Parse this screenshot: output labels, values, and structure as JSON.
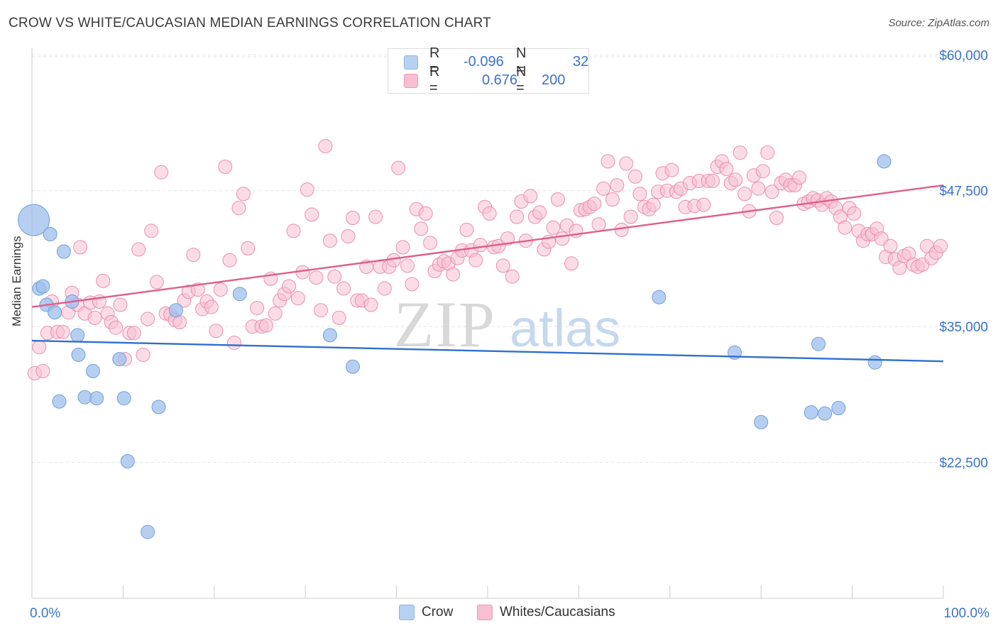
{
  "title": "CROW VS WHITE/CAUCASIAN MEDIAN EARNINGS CORRELATION CHART",
  "source": "Source: ZipAtlas.com",
  "watermark": {
    "zip": "ZIP",
    "atlas": "atlas"
  },
  "legend": {
    "r_label": "R =",
    "n_label": "N =",
    "rows": [
      {
        "swatch": "#b7d1f2",
        "r": "-0.096",
        "n": "32"
      },
      {
        "swatch": "#f7bfd1",
        "r": "0.676",
        "n": "200"
      }
    ]
  },
  "bottom_legend": [
    {
      "label": "Crow",
      "color": "#b7d1f2"
    },
    {
      "label": "Whites/Caucasians",
      "color": "#f7bfd1"
    }
  ],
  "chart_data": {
    "type": "scatter",
    "title": "CROW VS WHITE/CAUCASIAN MEDIAN EARNINGS CORRELATION CHART",
    "xlabel": "",
    "ylabel": "Median Earnings",
    "x_ticks": [
      "0.0%",
      "100.0%"
    ],
    "y_ticks": [
      {
        "value": 22500,
        "label": "$22,500"
      },
      {
        "value": 35000,
        "label": "$35,000"
      },
      {
        "value": 47500,
        "label": "$47,500"
      },
      {
        "value": 60000,
        "label": "$60,000"
      }
    ],
    "xlim": [
      0,
      100
    ],
    "ylim": [
      10000,
      61000
    ],
    "grid": true,
    "series": [
      {
        "name": "Crow",
        "color": "#9dbfec",
        "stroke": "#6f9fdc",
        "line_color": "#2f6fcc",
        "trend": {
          "x": [
            0,
            100
          ],
          "y": [
            33700,
            31800
          ]
        },
        "points": [
          [
            0.2,
            44800,
            5
          ],
          [
            0.8,
            38500,
            1
          ],
          [
            1.2,
            38700,
            1
          ],
          [
            1.6,
            37000,
            1
          ],
          [
            2.0,
            43500,
            1
          ],
          [
            2.5,
            36300,
            1
          ],
          [
            3.0,
            28100,
            1
          ],
          [
            3.5,
            41900,
            1
          ],
          [
            4.4,
            37300,
            1
          ],
          [
            5.0,
            34200,
            1
          ],
          [
            5.1,
            32400,
            1
          ],
          [
            5.8,
            28500,
            1
          ],
          [
            6.7,
            30900,
            1
          ],
          [
            7.1,
            28400,
            1
          ],
          [
            9.6,
            32000,
            1
          ],
          [
            10.1,
            28400,
            1
          ],
          [
            10.5,
            22600,
            1
          ],
          [
            12.7,
            16100,
            1
          ],
          [
            13.9,
            27600,
            1
          ],
          [
            15.8,
            36500,
            1
          ],
          [
            22.8,
            38000,
            1
          ],
          [
            32.7,
            34200,
            1
          ],
          [
            35.2,
            31300,
            1
          ],
          [
            68.8,
            37700,
            1
          ],
          [
            77.1,
            32600,
            1
          ],
          [
            80.0,
            26200,
            1
          ],
          [
            85.5,
            27100,
            1
          ],
          [
            86.3,
            33400,
            1
          ],
          [
            87.0,
            27000,
            1
          ],
          [
            88.5,
            27500,
            1
          ],
          [
            92.5,
            31700,
            1
          ],
          [
            93.5,
            50200,
            1
          ]
        ]
      },
      {
        "name": "Whites/Caucasians",
        "color": "#f7bfd1",
        "stroke": "#ea8fae",
        "line_color": "#e05d8c",
        "trend": {
          "x": [
            0,
            100
          ],
          "y": [
            36800,
            48000
          ]
        },
        "points": [
          [
            0.3,
            30700
          ],
          [
            0.8,
            33100
          ],
          [
            1.2,
            30900
          ],
          [
            1.7,
            34400
          ],
          [
            2.2,
            37300
          ],
          [
            2.8,
            34500
          ],
          [
            3.4,
            34500
          ],
          [
            4.0,
            36300
          ],
          [
            4.4,
            38100
          ],
          [
            5.0,
            37000
          ],
          [
            5.3,
            42300
          ],
          [
            5.8,
            36200
          ],
          [
            6.4,
            37200
          ],
          [
            6.9,
            35800
          ],
          [
            7.4,
            37300
          ],
          [
            7.8,
            39200
          ],
          [
            8.3,
            36200
          ],
          [
            8.7,
            35400
          ],
          [
            9.2,
            34900
          ],
          [
            9.7,
            37000
          ],
          [
            10.2,
            32000
          ],
          [
            10.7,
            34400
          ],
          [
            11.2,
            34400
          ],
          [
            11.7,
            42100
          ],
          [
            12.2,
            32400
          ],
          [
            12.7,
            35700
          ],
          [
            13.1,
            43800
          ],
          [
            13.7,
            39100
          ],
          [
            14.2,
            49200
          ],
          [
            14.7,
            36200
          ],
          [
            15.2,
            36100
          ],
          [
            15.7,
            35600
          ],
          [
            16.2,
            35400
          ],
          [
            16.7,
            37400
          ],
          [
            17.2,
            38200
          ],
          [
            17.7,
            41600
          ],
          [
            18.2,
            38400
          ],
          [
            18.7,
            36600
          ],
          [
            19.2,
            37300
          ],
          [
            19.7,
            36800
          ],
          [
            20.2,
            34600
          ],
          [
            20.7,
            38400
          ],
          [
            21.2,
            49700
          ],
          [
            21.7,
            41100
          ],
          [
            22.2,
            33500
          ],
          [
            22.7,
            45900
          ],
          [
            23.2,
            47200
          ],
          [
            23.7,
            42200
          ],
          [
            24.2,
            35000
          ],
          [
            24.7,
            36700
          ],
          [
            25.2,
            35000
          ],
          [
            25.7,
            35100
          ],
          [
            26.2,
            39400
          ],
          [
            26.7,
            36200
          ],
          [
            27.2,
            37400
          ],
          [
            27.7,
            38000
          ],
          [
            28.2,
            38700
          ],
          [
            28.7,
            43800
          ],
          [
            29.2,
            37600
          ],
          [
            29.7,
            40000
          ],
          [
            30.2,
            47600
          ],
          [
            30.7,
            45300
          ],
          [
            31.2,
            39500
          ],
          [
            31.7,
            36500
          ],
          [
            32.2,
            51600
          ],
          [
            32.7,
            42900
          ],
          [
            33.2,
            39600
          ],
          [
            33.7,
            35800
          ],
          [
            34.2,
            38500
          ],
          [
            34.7,
            43300
          ],
          [
            35.2,
            45000
          ],
          [
            35.7,
            37400
          ],
          [
            36.2,
            37400
          ],
          [
            36.7,
            40500
          ],
          [
            37.2,
            37000
          ],
          [
            37.7,
            45100
          ],
          [
            38.2,
            40500
          ],
          [
            38.7,
            38500
          ],
          [
            39.2,
            40500
          ],
          [
            39.7,
            41100
          ],
          [
            40.2,
            49600
          ],
          [
            40.7,
            42300
          ],
          [
            41.2,
            40600
          ],
          [
            41.7,
            38900
          ],
          [
            42.2,
            45800
          ],
          [
            42.7,
            44000
          ],
          [
            43.2,
            45400
          ],
          [
            43.7,
            42700
          ],
          [
            44.2,
            40100
          ],
          [
            44.7,
            40700
          ],
          [
            45.2,
            41000
          ],
          [
            45.7,
            40800
          ],
          [
            46.2,
            39800
          ],
          [
            46.7,
            41300
          ],
          [
            47.2,
            42000
          ],
          [
            47.7,
            43900
          ],
          [
            48.2,
            42000
          ],
          [
            48.7,
            41100
          ],
          [
            49.2,
            42500
          ],
          [
            49.7,
            46000
          ],
          [
            50.2,
            45400
          ],
          [
            50.7,
            42300
          ],
          [
            51.2,
            42400
          ],
          [
            51.7,
            40600
          ],
          [
            52.2,
            43100
          ],
          [
            52.7,
            39600
          ],
          [
            53.2,
            45100
          ],
          [
            53.7,
            46500
          ],
          [
            54.2,
            42900
          ],
          [
            54.7,
            47000
          ],
          [
            55.2,
            45100
          ],
          [
            55.7,
            45500
          ],
          [
            56.2,
            42100
          ],
          [
            56.7,
            42800
          ],
          [
            57.2,
            44100
          ],
          [
            57.7,
            46700
          ],
          [
            58.2,
            43100
          ],
          [
            58.7,
            44300
          ],
          [
            59.2,
            40800
          ],
          [
            59.7,
            43800
          ],
          [
            60.2,
            45700
          ],
          [
            60.7,
            45800
          ],
          [
            61.2,
            46000
          ],
          [
            61.7,
            46300
          ],
          [
            62.2,
            44400
          ],
          [
            62.7,
            47700
          ],
          [
            63.2,
            50200
          ],
          [
            63.7,
            46700
          ],
          [
            64.2,
            48000
          ],
          [
            64.7,
            43900
          ],
          [
            65.2,
            50000
          ],
          [
            65.7,
            45100
          ],
          [
            66.2,
            48800
          ],
          [
            66.7,
            47200
          ],
          [
            67.2,
            46000
          ],
          [
            67.7,
            45800
          ],
          [
            68.2,
            46200
          ],
          [
            68.7,
            47400
          ],
          [
            69.2,
            49100
          ],
          [
            69.7,
            47500
          ],
          [
            70.2,
            49400
          ],
          [
            70.7,
            47400
          ],
          [
            71.2,
            47700
          ],
          [
            71.7,
            46000
          ],
          [
            72.2,
            48200
          ],
          [
            72.7,
            46100
          ],
          [
            73.2,
            48400
          ],
          [
            73.7,
            46200
          ],
          [
            74.2,
            48400
          ],
          [
            74.7,
            48400
          ],
          [
            75.2,
            49700
          ],
          [
            75.7,
            50200
          ],
          [
            76.2,
            49500
          ],
          [
            76.7,
            48200
          ],
          [
            77.2,
            48500
          ],
          [
            77.7,
            51000
          ],
          [
            78.2,
            47200
          ],
          [
            78.7,
            45600
          ],
          [
            79.2,
            48900
          ],
          [
            79.7,
            47700
          ],
          [
            80.2,
            49300
          ],
          [
            80.7,
            51000
          ],
          [
            81.2,
            47400
          ],
          [
            81.7,
            45000
          ],
          [
            82.2,
            48200
          ],
          [
            82.7,
            48500
          ],
          [
            83.2,
            48000
          ],
          [
            83.7,
            48000
          ],
          [
            84.2,
            48700
          ],
          [
            84.7,
            46300
          ],
          [
            85.2,
            46500
          ],
          [
            85.7,
            46800
          ],
          [
            86.2,
            46600
          ],
          [
            86.7,
            46200
          ],
          [
            87.2,
            46800
          ],
          [
            87.7,
            46500
          ],
          [
            88.2,
            45900
          ],
          [
            88.7,
            45100
          ],
          [
            89.2,
            44100
          ],
          [
            89.7,
            45900
          ],
          [
            90.2,
            45400
          ],
          [
            90.7,
            43800
          ],
          [
            91.2,
            42900
          ],
          [
            91.7,
            43500
          ],
          [
            92.2,
            43500
          ],
          [
            92.7,
            44000
          ],
          [
            93.2,
            43100
          ],
          [
            93.7,
            41400
          ],
          [
            94.2,
            42400
          ],
          [
            94.7,
            41200
          ],
          [
            95.2,
            40400
          ],
          [
            95.7,
            41500
          ],
          [
            96.2,
            41700
          ],
          [
            96.7,
            40700
          ],
          [
            97.2,
            40500
          ],
          [
            97.7,
            40700
          ],
          [
            98.2,
            42400
          ],
          [
            98.7,
            41300
          ],
          [
            99.2,
            41800
          ],
          [
            99.7,
            42400
          ]
        ]
      }
    ]
  }
}
